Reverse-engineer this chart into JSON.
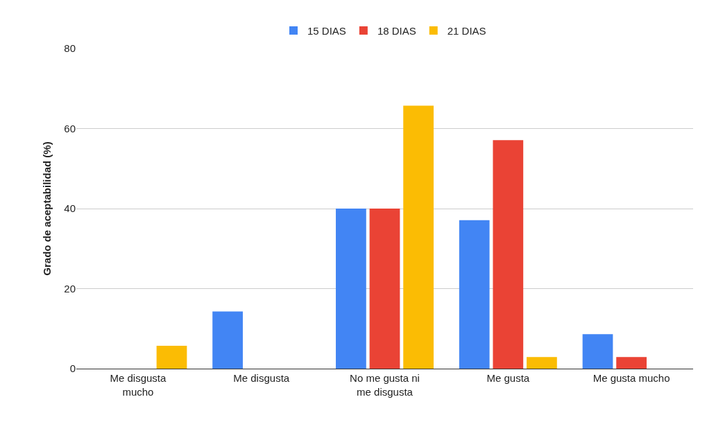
{
  "chart_data": {
    "type": "bar",
    "ylabel": "Grado de aceptabilidad (%)",
    "categories": [
      "Me disgusta mucho",
      "Me disgusta",
      "No me gusta ni me disgusta",
      "Me gusta",
      "Me gusta mucho"
    ],
    "series": [
      {
        "name": "15 DIAS",
        "color": "#4285f4",
        "values": [
          0,
          14.3,
          40,
          37.1,
          8.6
        ]
      },
      {
        "name": "18 DIAS",
        "color": "#ea4335",
        "values": [
          0,
          0,
          40,
          57.1,
          2.9
        ]
      },
      {
        "name": "21 DIAS",
        "color": "#fbbc04",
        "values": [
          5.7,
          0,
          65.7,
          2.9,
          0
        ]
      }
    ],
    "ylim": [
      0,
      80
    ],
    "yticks": [
      0,
      20,
      40,
      60,
      80
    ],
    "grid": "y",
    "legend": "top"
  }
}
